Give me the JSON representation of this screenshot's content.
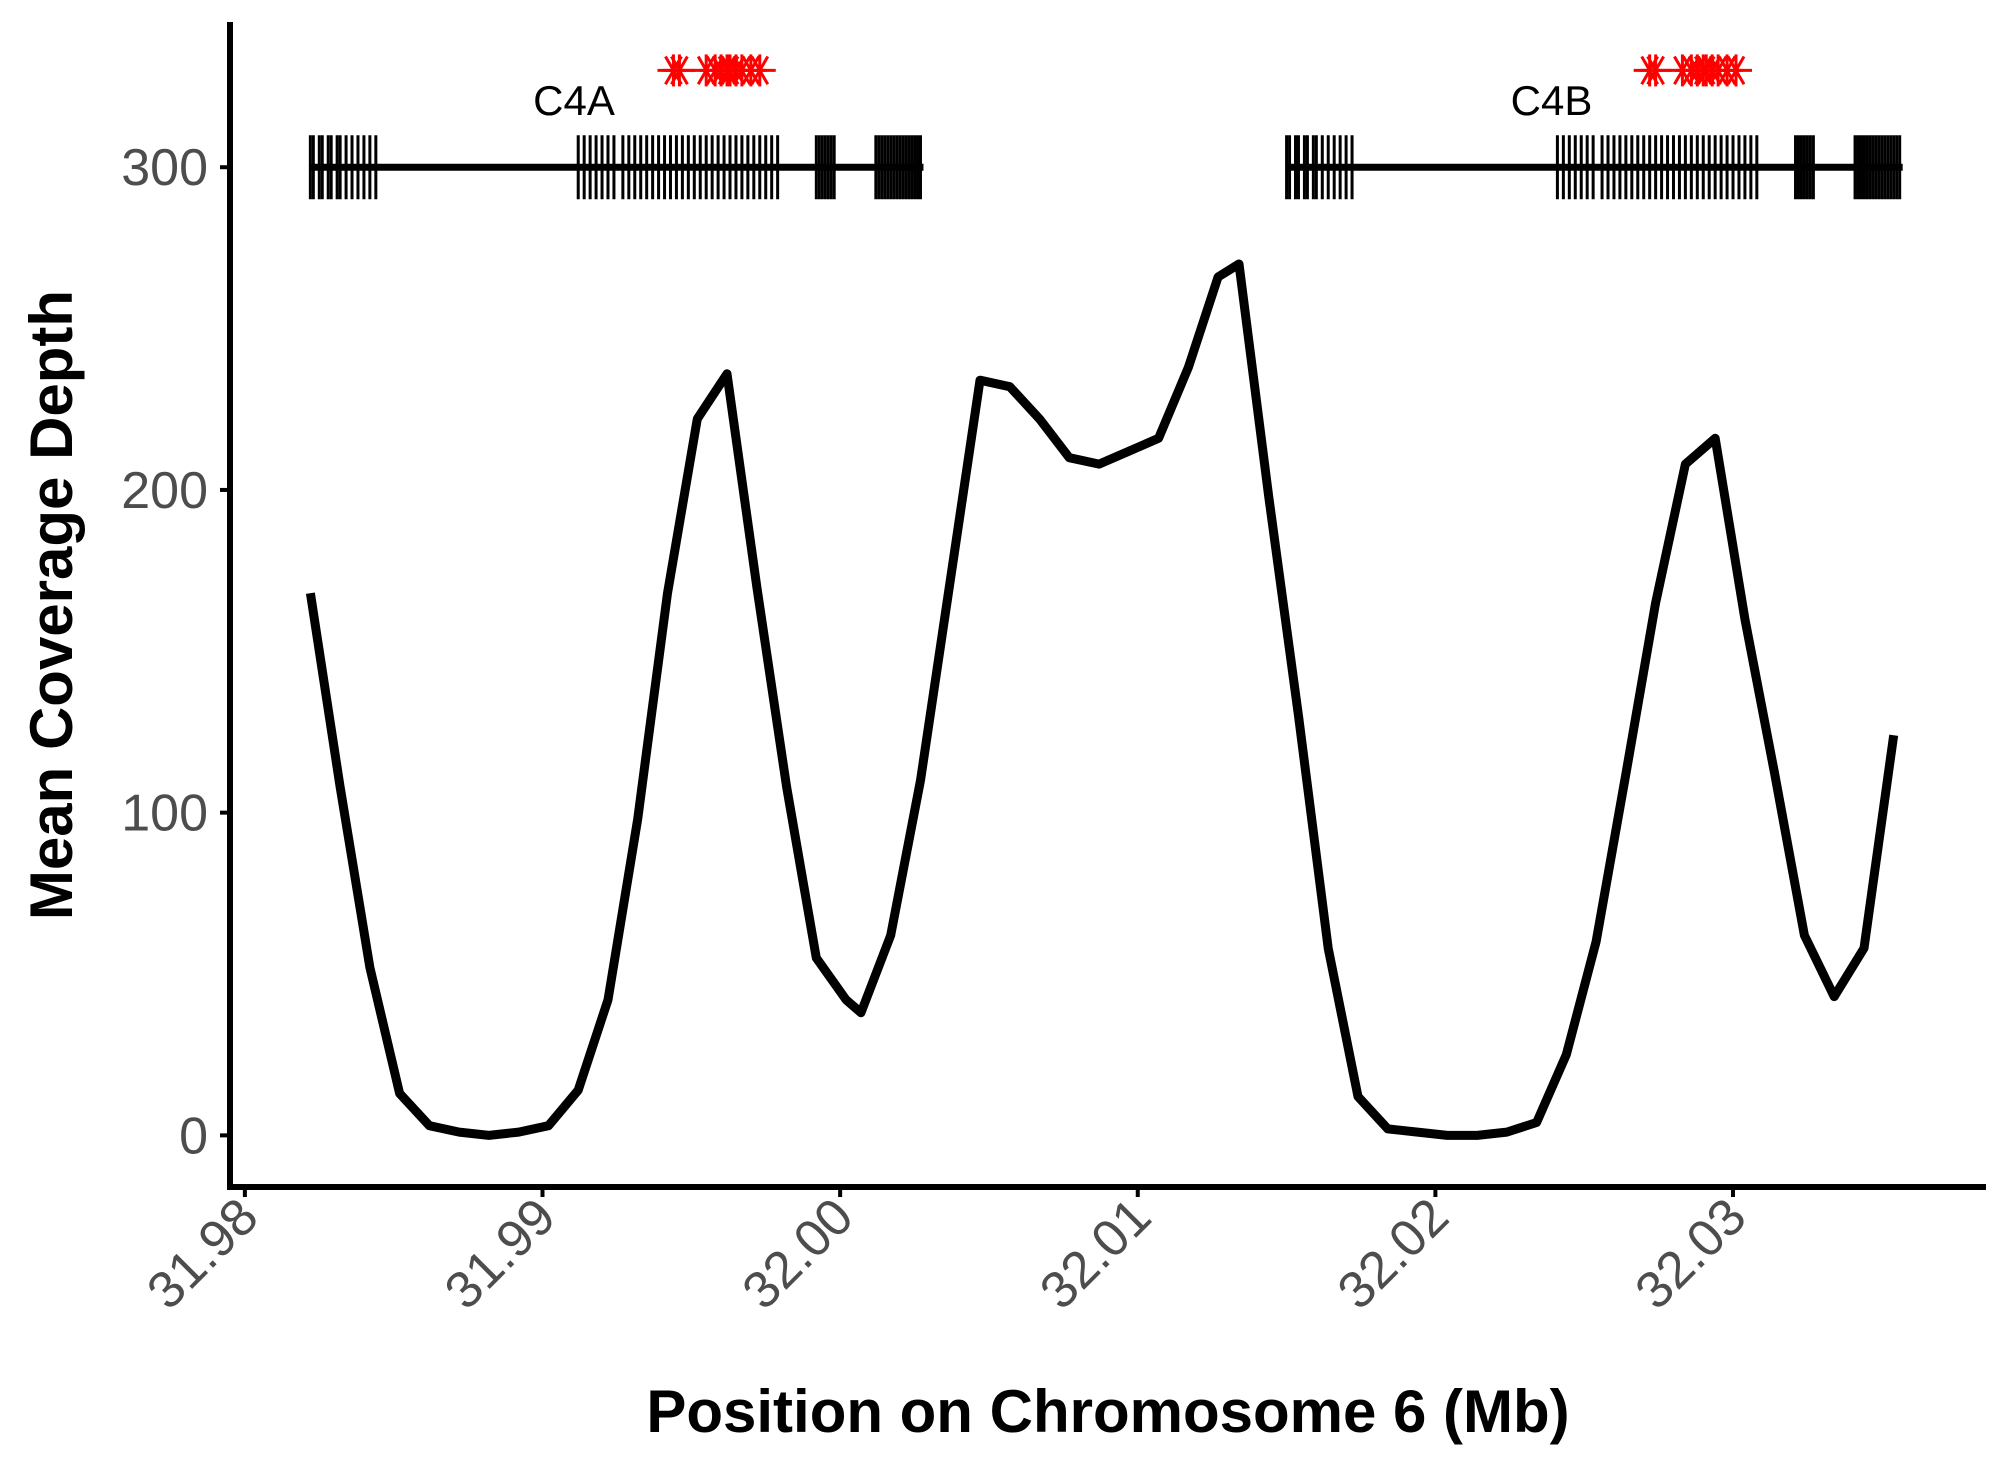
{
  "chart_data": {
    "type": "line",
    "title": "",
    "xlabel": "Position on Chromosome 6 (Mb)",
    "ylabel": "Mean Coverage Depth",
    "xlim": [
      31.9795,
      32.0385
    ],
    "ylim": [
      -16,
      345
    ],
    "x_ticks": [
      "31.98",
      "31.99",
      "32.00",
      "32.01",
      "32.02",
      "32.03"
    ],
    "x_tick_values": [
      31.98,
      31.99,
      32.0,
      32.01,
      32.02,
      32.03
    ],
    "y_ticks": [
      "0",
      "100",
      "200",
      "300"
    ],
    "y_tick_values": [
      0,
      100,
      200,
      300
    ],
    "grid": false,
    "legend": "none",
    "line_color": "#000000",
    "marker_color": "#ff0000",
    "series": [
      {
        "x": [
          31.9822,
          31.9832,
          31.9842,
          31.9852,
          31.9862,
          31.9872,
          31.9882,
          31.9892,
          31.9902,
          31.9912,
          31.9922,
          31.9932,
          31.9942,
          31.9952,
          31.9962,
          31.9972,
          31.9982,
          31.9992,
          32.0002,
          32.0007,
          32.0017,
          32.0027,
          32.0037,
          32.0047,
          32.0057,
          32.0067,
          32.0077,
          32.0087,
          32.0097,
          32.0107,
          32.0117,
          32.0127,
          32.0134,
          32.0144,
          32.0154,
          32.0164,
          32.0174,
          32.0184,
          32.0194,
          32.0204,
          32.0214,
          32.0224,
          32.0234,
          32.0244,
          32.0254,
          32.0264,
          32.0274,
          32.0284,
          32.0294,
          32.0304,
          32.0314,
          32.0324,
          32.0334,
          32.0344,
          32.0354
        ],
        "y": [
          168,
          108,
          52,
          13,
          3,
          1,
          0,
          1,
          3,
          14,
          42,
          98,
          168,
          222,
          236,
          170,
          108,
          55,
          42,
          38,
          62,
          110,
          172,
          234,
          232,
          222,
          210,
          208,
          212,
          216,
          238,
          266,
          270,
          198,
          130,
          58,
          12,
          2,
          1,
          0,
          0,
          1,
          4,
          25,
          60,
          112,
          165,
          208,
          216,
          160,
          112,
          62,
          43,
          58,
          124
        ]
      }
    ],
    "genes": [
      {
        "name": "C4A",
        "start": 31.9822,
        "end": 32.0028,
        "y": 300,
        "exons": [
          31.9822,
          31.9823,
          31.9825,
          31.9826,
          31.9828,
          31.9829,
          31.9831,
          31.9832,
          31.9834,
          31.9836,
          31.9838,
          31.984,
          31.9842,
          31.9844,
          31.9912,
          31.9914,
          31.9916,
          31.9918,
          31.992,
          31.9922,
          31.9924,
          31.9927,
          31.9929,
          31.9931,
          31.9933,
          31.9935,
          31.9937,
          31.9939,
          31.9941,
          31.9943,
          31.9945,
          31.9947,
          31.9949,
          31.9951,
          31.9953,
          31.9955,
          31.9957,
          31.9959,
          31.9961,
          31.9963,
          31.9965,
          31.9967,
          31.9969,
          31.9971,
          31.9973,
          31.9975,
          31.9977,
          31.9979,
          31.9992,
          31.9993,
          31.9994,
          31.9995,
          31.9996,
          31.9997,
          31.9998,
          32.0012,
          32.0013,
          32.0014,
          32.0015,
          32.0016,
          32.0017,
          32.0018,
          32.0019,
          32.002,
          32.0021,
          32.0022,
          32.0023,
          32.0024,
          32.0025,
          32.0026,
          32.0027
        ]
      },
      {
        "name": "C4B",
        "start": 32.015,
        "end": 32.0357,
        "y": 300,
        "exons": [
          32.015,
          32.0151,
          32.0153,
          32.0154,
          32.0156,
          32.0157,
          32.0159,
          32.016,
          32.0162,
          32.0164,
          32.0166,
          32.0168,
          32.017,
          32.0172,
          32.0241,
          32.0243,
          32.0245,
          32.0247,
          32.0249,
          32.0251,
          32.0253,
          32.0256,
          32.0258,
          32.026,
          32.0262,
          32.0264,
          32.0266,
          32.0268,
          32.027,
          32.0272,
          32.0274,
          32.0276,
          32.0278,
          32.028,
          32.0282,
          32.0284,
          32.0286,
          32.0288,
          32.029,
          32.0292,
          32.0294,
          32.0296,
          32.0298,
          32.03,
          32.0302,
          32.0304,
          32.0306,
          32.0308,
          32.0321,
          32.0322,
          32.0323,
          32.0324,
          32.0325,
          32.0326,
          32.0327,
          32.0341,
          32.0342,
          32.0343,
          32.0344,
          32.0345,
          32.0346,
          32.0347,
          32.0348,
          32.0349,
          32.035,
          32.0351,
          32.0352,
          32.0353,
          32.0354,
          32.0355,
          32.0356
        ]
      }
    ],
    "markers": {
      "symbol": "asterisk",
      "y": 330,
      "x": [
        31.9944,
        31.9946,
        31.9955,
        31.9958,
        31.996,
        31.9962,
        31.9963,
        31.9965,
        31.9967,
        31.997,
        31.9973,
        32.0272,
        32.0274,
        32.0283,
        32.0286,
        32.0288,
        32.029,
        32.0291,
        32.0293,
        32.0295,
        32.0298,
        32.0301
      ]
    }
  }
}
